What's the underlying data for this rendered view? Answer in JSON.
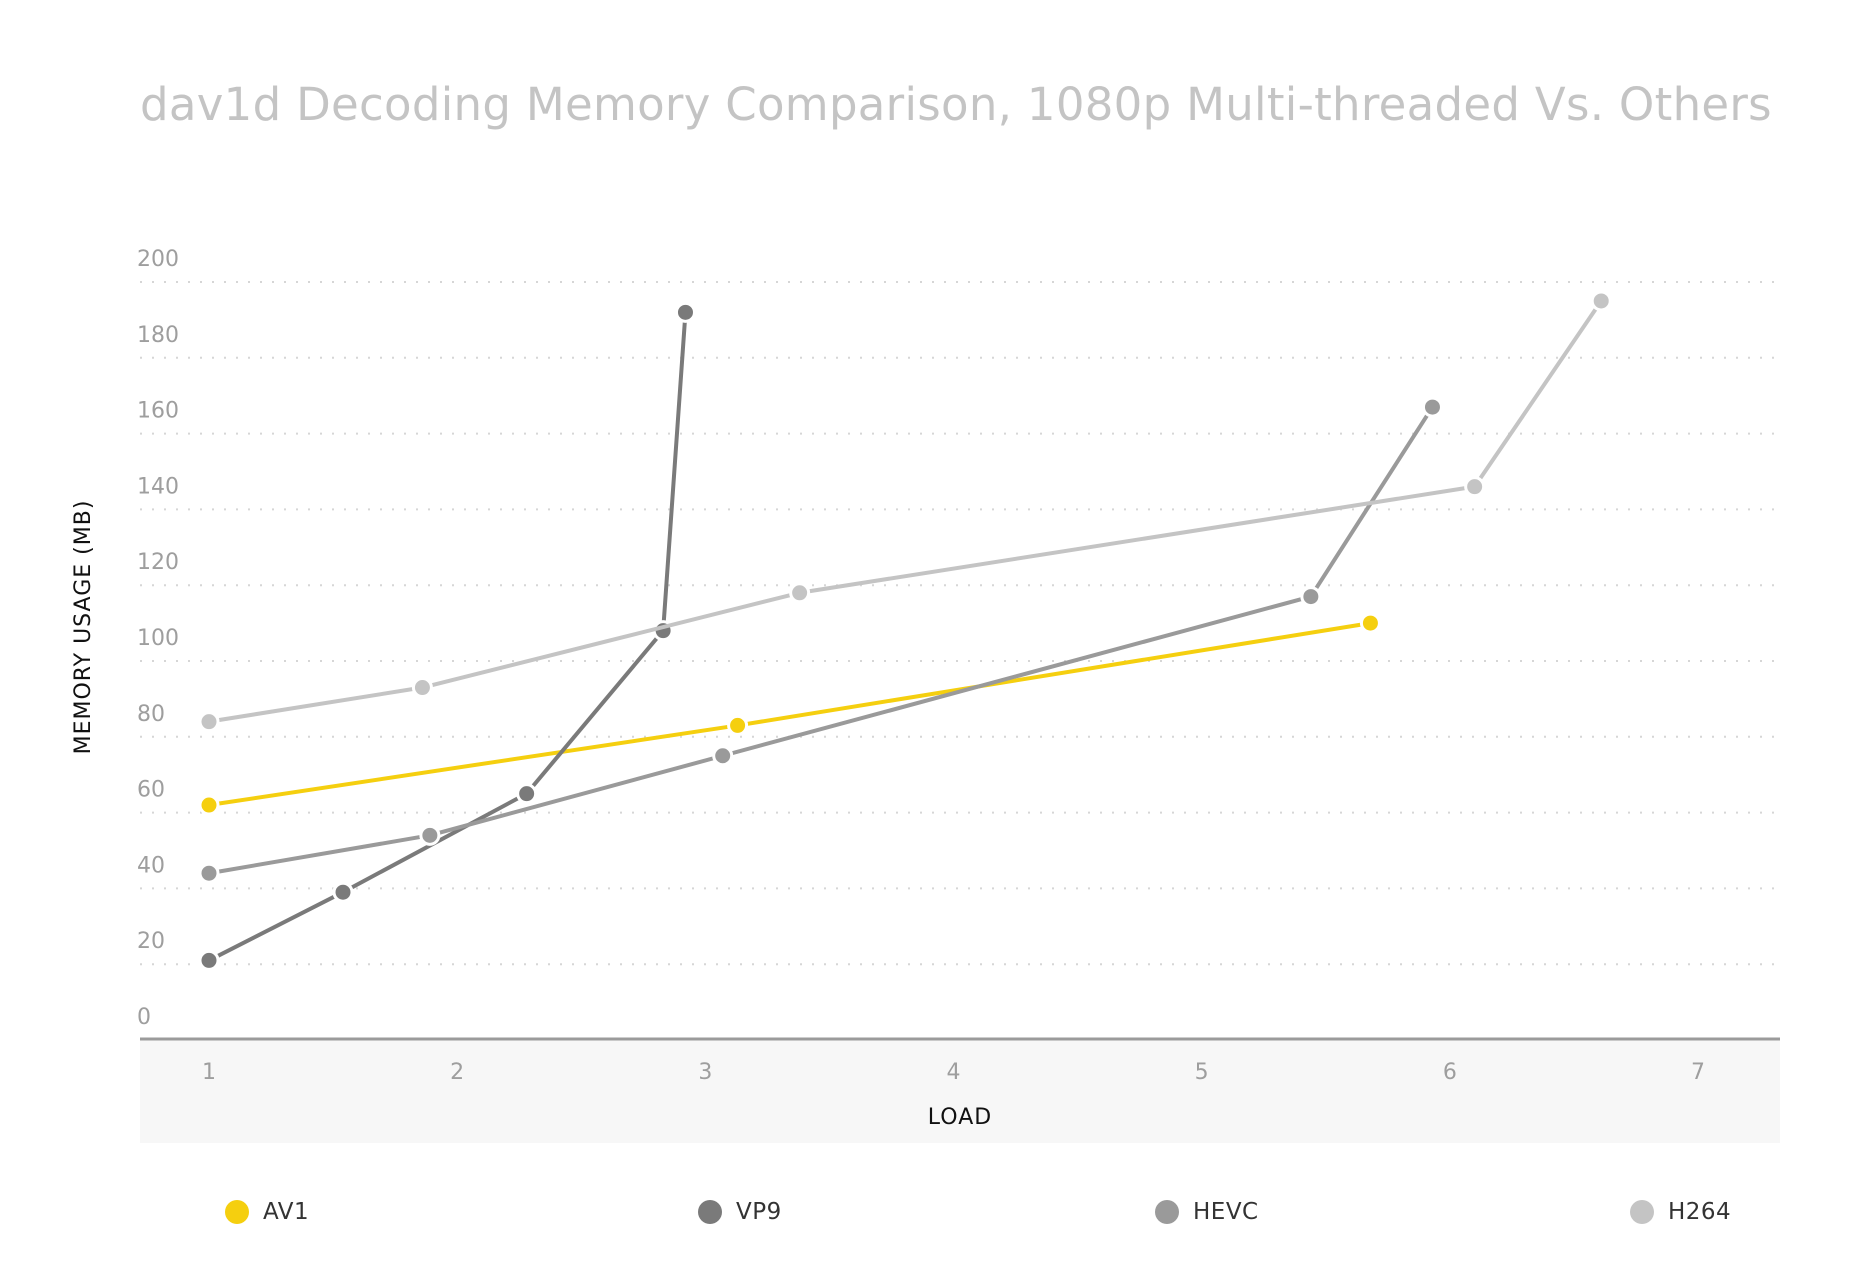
{
  "chart_data": {
    "type": "line",
    "title": "dav1d Decoding Memory Comparison, 1080p Multi-threaded Vs. Others",
    "xlabel": "LOAD",
    "ylabel": "MEMORY USAGE (MB)",
    "xlim": [
      1,
      7
    ],
    "ylim": [
      0,
      200
    ],
    "xticks": [
      "1",
      "2",
      "3",
      "4",
      "5",
      "6",
      "7"
    ],
    "yticks": [
      "0",
      "20",
      "40",
      "60",
      "80",
      "100",
      "120",
      "140",
      "160",
      "180",
      "200"
    ],
    "grid": true,
    "legend_position": "bottom",
    "series": [
      {
        "name": "AV1",
        "color": "#f5cf0f",
        "points": [
          [
            1.0,
            62
          ],
          [
            3.13,
            83
          ],
          [
            5.68,
            110
          ]
        ]
      },
      {
        "name": "VP9",
        "color": "#7a7a7a",
        "points": [
          [
            1.0,
            21
          ],
          [
            1.54,
            39
          ],
          [
            2.28,
            65
          ],
          [
            2.83,
            108
          ],
          [
            2.92,
            192
          ]
        ]
      },
      {
        "name": "HEVC",
        "color": "#9a9a9a",
        "points": [
          [
            1.0,
            44
          ],
          [
            1.89,
            54
          ],
          [
            3.07,
            75
          ],
          [
            5.44,
            117
          ],
          [
            5.93,
            167
          ]
        ]
      },
      {
        "name": "H264",
        "color": "#c4c4c4",
        "points": [
          [
            1.0,
            84
          ],
          [
            1.86,
            93
          ],
          [
            3.38,
            118
          ],
          [
            6.1,
            146
          ],
          [
            6.61,
            195
          ]
        ]
      }
    ]
  }
}
